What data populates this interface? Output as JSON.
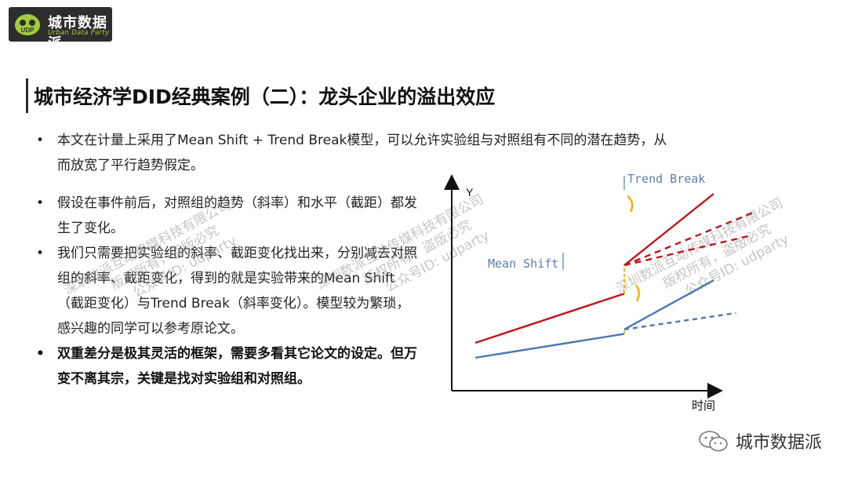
{
  "logo": {
    "name": "城市数据派",
    "sub": "Urban Data Party",
    "badge": "UDP"
  },
  "title": "城市经济学DID经典案例（二）：龙头企业的溢出效应",
  "bullets": [
    "本文在计量上采用了Mean Shift + Trend Break模型，可以允许实验组与对照组有不同的潜在趋势，从而放宽了平行趋势假定。",
    "假设在事件前后，对照组的趋势（斜率）和水平（截距）都发生了变化。",
    "我们只需要把实验组的斜率、截距变化找出来，分别减去对照组的斜率、截距变化，得到的就是实验带来的Mean Shift（截距变化）与Trend Break（斜率变化）。模型较为繁琐，感兴趣的同学可以参考原论文。",
    "双重差分是极其灵活的框架，需要多看其它论文的设定。但万变不离其宗，关键是找对实验组和对照组。"
  ],
  "watermark": {
    "line1": "深圳数派互动传媒科技有限公司",
    "line2": "版权所有，盗版必究",
    "line3": "公众号ID: udparty"
  },
  "chart_data": {
    "type": "line",
    "xlabel": "时间",
    "ylabel": "Y",
    "annotations": [
      "Mean Shift",
      "Trend Break"
    ],
    "series": [
      {
        "color": "#c0161b",
        "pre": [
          [
            0,
            0.0
          ],
          [
            1,
            0.33
          ]
        ],
        "post_actual": [
          [
            1,
            0.52
          ],
          [
            1.6,
            1.0
          ]
        ],
        "post_counterfactual": [
          [
            1,
            0.52
          ],
          [
            1.88,
            0.88
          ]
        ],
        "post_parallel": [
          [
            1,
            0.52
          ],
          [
            1.85,
            0.72
          ]
        ]
      },
      {
        "color": "#4a78b5",
        "pre": [
          [
            0,
            -0.1
          ],
          [
            1,
            0.06
          ]
        ],
        "post_actual": [
          [
            1,
            0.09
          ],
          [
            1.6,
            0.42
          ]
        ],
        "post_counterfactual": [
          [
            1,
            0.09
          ],
          [
            1.75,
            0.2
          ]
        ]
      }
    ]
  },
  "footer": {
    "account": "城市数据派"
  }
}
